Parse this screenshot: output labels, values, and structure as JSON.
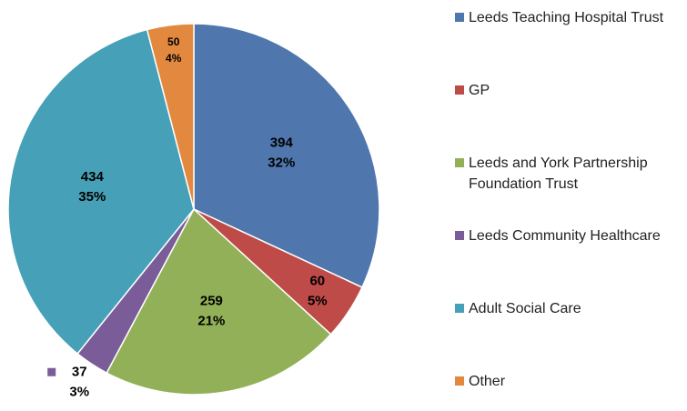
{
  "chart_data": {
    "type": "pie",
    "categories": [
      "Leeds Teaching Hospital Trust",
      "GP",
      "Leeds and York Partnership Foundation Trust",
      "Leeds Community Healthcare",
      "Adult Social Care",
      "Other"
    ],
    "values": [
      394,
      60,
      259,
      37,
      434,
      50
    ],
    "percent_labels": [
      "32%",
      "5%",
      "21%",
      "3%",
      "35%",
      "4%"
    ],
    "colors": [
      "#4f76ad",
      "#be4b48",
      "#92b057",
      "#7a5c99",
      "#46a0b7",
      "#e2883f"
    ],
    "legend": "right"
  }
}
